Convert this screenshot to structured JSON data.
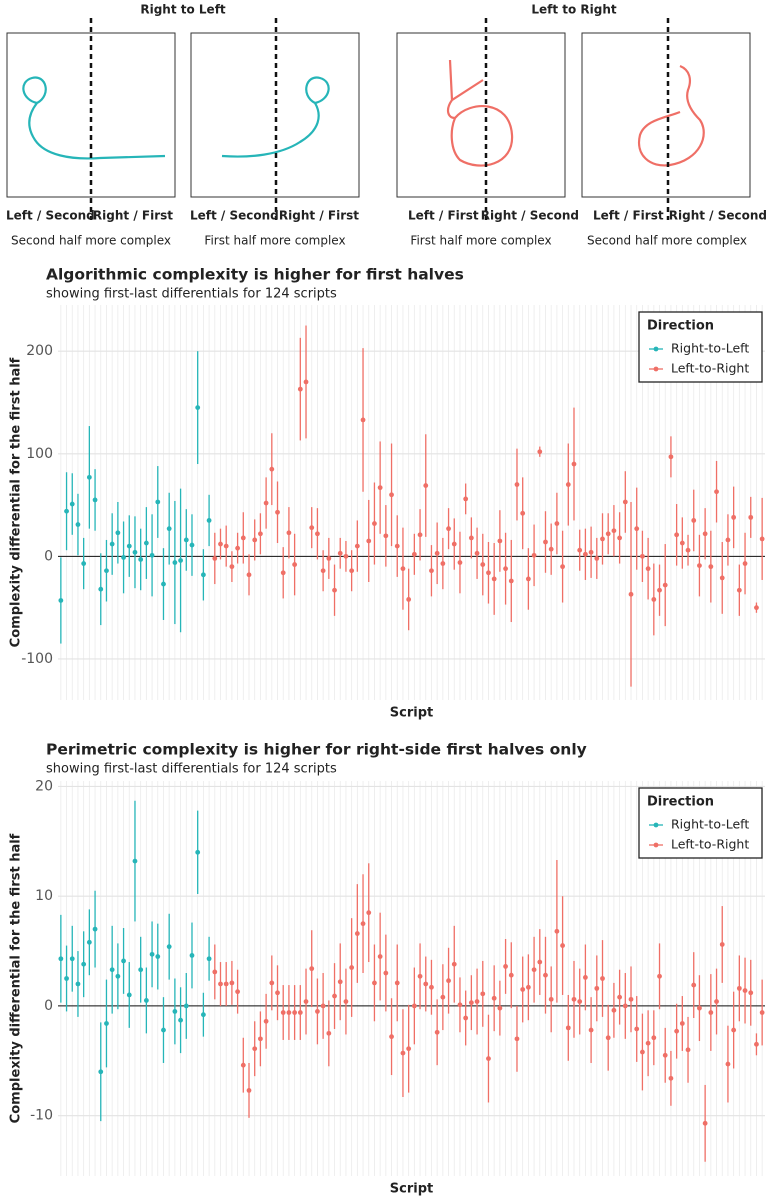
{
  "diagram": {
    "groups": [
      {
        "title": "Right to Left",
        "panels": [
          {
            "left_label": "Left / Second",
            "right_label": "Right / First",
            "caption": "Second half more complex"
          },
          {
            "left_label": "Left / Second",
            "right_label": "Right / First",
            "caption": "First half more complex"
          }
        ]
      },
      {
        "title": "Left to Right",
        "panels": [
          {
            "left_label": "Left / First",
            "right_label": "Right / Second",
            "caption": "First half more complex"
          },
          {
            "left_label": "Left / First",
            "right_label": "Right / Second",
            "caption": "Second half more complex"
          }
        ]
      }
    ]
  },
  "chart_data": [
    {
      "type": "pointrange",
      "title": "Algorithmic complexity is higher for first halves",
      "subtitle": "showing first-last differentials for 124 scripts",
      "xlabel": "Script",
      "ylabel": "Complexity differential for the first half",
      "ylim": [
        -140,
        245
      ],
      "yticks": [
        -100,
        0,
        100,
        200
      ],
      "grid": true,
      "legend_title": "Direction",
      "legend": "top-right",
      "series": [
        {
          "name": "Right-to-Left",
          "color": "#26b5b8",
          "values": [
            -43,
            44,
            51,
            31,
            -7,
            77,
            55,
            -32,
            -14,
            12,
            23,
            -1,
            10,
            4,
            -3,
            13,
            1,
            53,
            -27,
            27,
            -6,
            -4,
            16,
            11,
            145,
            -18,
            35
          ],
          "errors": [
            42,
            38,
            30,
            30,
            25,
            50,
            30,
            35,
            30,
            30,
            30,
            35,
            30,
            35,
            30,
            35,
            40,
            35,
            35,
            35,
            60,
            70,
            30,
            30,
            55,
            25,
            25
          ]
        },
        {
          "name": "Left-to-Right",
          "color": "#ef6f66",
          "values": [
            -2,
            12,
            10,
            -10,
            8,
            18,
            -18,
            16,
            22,
            52,
            85,
            43,
            -16,
            23,
            -8,
            163,
            170,
            28,
            22,
            -14,
            -2,
            -33,
            3,
            0,
            -14,
            10,
            133,
            15,
            32,
            67,
            20,
            60,
            10,
            -12,
            -42,
            2,
            21,
            69,
            -14,
            3,
            -7,
            27,
            12,
            -6,
            56,
            18,
            3,
            -8,
            -16,
            -22,
            15,
            -12,
            -24,
            70,
            42,
            -22,
            1,
            102,
            14,
            7,
            32,
            -10,
            70,
            90,
            6,
            2,
            4,
            -2,
            17,
            22,
            25,
            18,
            53,
            -37,
            27,
            0,
            -12,
            -42,
            -33,
            -28,
            97,
            21,
            13,
            6,
            35,
            -9,
            22,
            -10,
            63,
            -21,
            16,
            38,
            -33,
            -7,
            38,
            -50,
            17
          ],
          "errors": [
            25,
            15,
            20,
            15,
            15,
            25,
            20,
            20,
            20,
            25,
            35,
            30,
            25,
            25,
            30,
            50,
            55,
            20,
            25,
            20,
            20,
            25,
            15,
            15,
            20,
            25,
            70,
            40,
            40,
            45,
            30,
            50,
            30,
            40,
            30,
            20,
            25,
            50,
            25,
            30,
            25,
            20,
            25,
            30,
            15,
            20,
            25,
            30,
            30,
            35,
            30,
            35,
            40,
            35,
            35,
            30,
            30,
            5,
            30,
            25,
            30,
            35,
            40,
            55,
            20,
            25,
            25,
            20,
            25,
            20,
            25,
            25,
            30,
            90,
            40,
            25,
            30,
            35,
            25,
            40,
            20,
            30,
            25,
            15,
            30,
            30,
            25,
            35,
            30,
            35,
            25,
            30,
            25,
            30,
            20,
            5,
            40
          ]
        }
      ]
    },
    {
      "type": "pointrange",
      "title": "Perimetric complexity is higher for right-side first halves only",
      "subtitle": "showing first-last differentials for 124 scripts",
      "xlabel": "Script",
      "ylabel": "Complexity differential for the first half",
      "ylim": [
        -15.5,
        20.5
      ],
      "yticks": [
        -10,
        0,
        10,
        20
      ],
      "grid": true,
      "legend_title": "Direction",
      "legend": "top-right",
      "series": [
        {
          "name": "Right-to-Left",
          "color": "#26b5b8",
          "values": [
            4.3,
            2.5,
            4.3,
            2,
            3.8,
            5.8,
            7,
            -6,
            -1.6,
            3.3,
            2.7,
            4.1,
            1,
            13.2,
            3.3,
            0.5,
            4.7,
            4.5,
            -2.2,
            5.4,
            -0.5,
            -1.3,
            0,
            4.6,
            14,
            -0.8,
            4.3
          ],
          "errors": [
            4,
            3,
            3,
            3,
            3,
            3,
            3.5,
            4.5,
            4,
            4,
            3,
            3,
            3,
            5.5,
            3,
            3,
            3,
            3,
            3,
            3,
            3,
            3,
            3,
            3,
            3.8,
            2,
            2
          ]
        },
        {
          "name": "Left-to-Right",
          "color": "#ef6f66",
          "values": [
            3.1,
            2,
            2,
            2.1,
            1.3,
            -5.4,
            -7.7,
            -3.9,
            -3,
            -1.4,
            2.1,
            1.2,
            -0.6,
            -0.6,
            -0.6,
            -0.6,
            0.4,
            3.4,
            -0.5,
            0,
            -2.5,
            0.9,
            2.2,
            0.4,
            3.5,
            6.6,
            7.5,
            8.5,
            2.1,
            4.5,
            3,
            -2.8,
            2.1,
            -4.3,
            -3.9,
            0,
            2.7,
            2,
            1.7,
            -2.4,
            0.8,
            2.3,
            3.8,
            0.1,
            -1.1,
            0.3,
            0.4,
            1.1,
            -4.8,
            0.7,
            -0.2,
            3.6,
            2.8,
            -3,
            1.5,
            1.7,
            3.3,
            4,
            2.8,
            0.6,
            6.8,
            5.5,
            -2,
            0.6,
            0.4,
            2.6,
            -2.2,
            1.6,
            2.5,
            -2.9,
            -0.4,
            0.8,
            0,
            0.6,
            -2.1,
            -4.2,
            -3.4,
            -2.9,
            2.7,
            -4.5,
            -6.6,
            -2.3,
            -1.6,
            -4,
            1.9,
            -0.2,
            -10.7,
            -0.6,
            0.4,
            5.6,
            -5.3,
            -2.2,
            1.6,
            1.4,
            1.2,
            -3.5,
            -0.6
          ],
          "errors": [
            2.5,
            2,
            2,
            2,
            2,
            2.5,
            2.5,
            2.5,
            2.5,
            2.5,
            2.5,
            2.5,
            2.5,
            2.5,
            2.5,
            2.5,
            3,
            3.5,
            3,
            3,
            3,
            3,
            3.5,
            3,
            4.5,
            4.5,
            4.5,
            4.5,
            3.5,
            4,
            3.5,
            3.5,
            3.5,
            4,
            4,
            3.5,
            3,
            2.5,
            2.5,
            3,
            3,
            3,
            3.5,
            2.5,
            2.5,
            2.5,
            3,
            3,
            4,
            3,
            2.5,
            2.5,
            3,
            3,
            3,
            3,
            3,
            3,
            3.5,
            3,
            6.5,
            4.5,
            3,
            3.5,
            3,
            3,
            3,
            3,
            3.5,
            3,
            2.5,
            2.5,
            3,
            3,
            3,
            3.5,
            3,
            2.5,
            3,
            2.5,
            2.5,
            2.5,
            2.5,
            3,
            3,
            3,
            3.5,
            3.5,
            3,
            3.5,
            3.5,
            3.5,
            3,
            3,
            3,
            1,
            3
          ]
        }
      ]
    }
  ]
}
